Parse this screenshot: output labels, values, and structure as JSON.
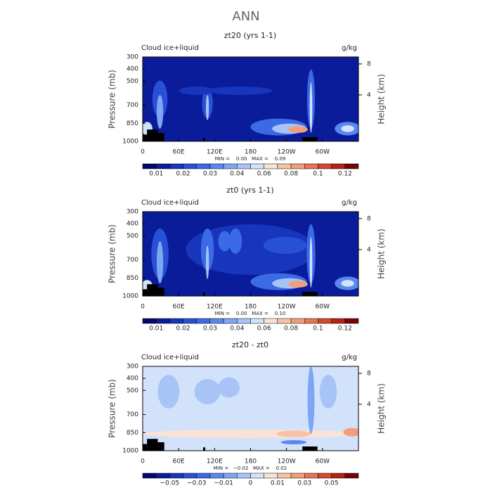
{
  "title": "ANN",
  "chart_data": [
    {
      "type": "contour",
      "title": "zt20 (yrs 1-1)",
      "subtitle": "Cloud ice+liquid",
      "units": "g/kg",
      "ylabel": "Pressure (mb)",
      "y2label": "Height (km)",
      "stats": "MIN =    0.00   MAX =    0.09",
      "xlim": [
        0,
        360
      ],
      "xticks": [
        0,
        {
          "value": 60,
          "label": "60E"
        },
        {
          "value": 120,
          "label": "120E"
        },
        180,
        {
          "value": 240,
          "label": "120W"
        },
        {
          "value": 300,
          "label": "60W"
        }
      ],
      "ylim": [
        1000,
        300
      ],
      "yticks": [
        300,
        400,
        500,
        700,
        850,
        1000
      ],
      "y2lim": [
        -2,
        8.9
      ],
      "y2ticks": [
        4,
        8
      ],
      "colorbar": {
        "levels": [
          0.01,
          null,
          0.02,
          null,
          0.03,
          null,
          0.04,
          null,
          0.06,
          null,
          0.08,
          null,
          0.1,
          null,
          0.12
        ],
        "colors": [
          "#06066e",
          "#0a1c9a",
          "#1736bd",
          "#2850d6",
          "#3b6ae6",
          "#5a88ef",
          "#7fa6f4",
          "#a8c4f7",
          "#d2e2fb",
          "#fbe2d6",
          "#f7c3a6",
          "#f19f7b",
          "#e67552",
          "#d4492b",
          "#b32214",
          "#780404"
        ]
      }
    },
    {
      "type": "contour",
      "title": "zt0 (yrs 1-1)",
      "subtitle": "Cloud ice+liquid",
      "units": "g/kg",
      "ylabel": "Pressure (mb)",
      "y2label": "Height (km)",
      "stats": "MIN =    0.00   MAX =    0.10",
      "xlim": [
        0,
        360
      ],
      "xticks": [
        0,
        {
          "value": 60,
          "label": "60E"
        },
        {
          "value": 120,
          "label": "120E"
        },
        180,
        {
          "value": 240,
          "label": "120W"
        },
        {
          "value": 300,
          "label": "60W"
        }
      ],
      "ylim": [
        1000,
        300
      ],
      "yticks": [
        300,
        400,
        500,
        700,
        850,
        1000
      ],
      "y2lim": [
        -2,
        8.9
      ],
      "y2ticks": [
        4,
        8
      ],
      "colorbar": {
        "levels": [
          0.01,
          null,
          0.02,
          null,
          0.03,
          null,
          0.04,
          null,
          0.06,
          null,
          0.08,
          null,
          0.1,
          null,
          0.12
        ],
        "colors": [
          "#06066e",
          "#0a1c9a",
          "#1736bd",
          "#2850d6",
          "#3b6ae6",
          "#5a88ef",
          "#7fa6f4",
          "#a8c4f7",
          "#d2e2fb",
          "#fbe2d6",
          "#f7c3a6",
          "#f19f7b",
          "#e67552",
          "#d4492b",
          "#b32214",
          "#780404"
        ]
      }
    },
    {
      "type": "contour",
      "title": "zt20 - zt0",
      "subtitle": "Cloud ice+liquid",
      "units": "g/kg",
      "ylabel": "Pressure (mb)",
      "y2label": "Height (km)",
      "stats": "MIN =   −0.02   MAX =    0.02",
      "xlim": [
        0,
        360
      ],
      "xticks": [
        0,
        {
          "value": 60,
          "label": "60E"
        },
        {
          "value": 120,
          "label": "120E"
        },
        180,
        {
          "value": 240,
          "label": "120W"
        },
        {
          "value": 300,
          "label": "60W"
        }
      ],
      "ylim": [
        1000,
        300
      ],
      "yticks": [
        300,
        400,
        500,
        700,
        850,
        1000
      ],
      "y2lim": [
        -2,
        8.9
      ],
      "y2ticks": [
        4,
        8
      ],
      "colorbar": {
        "levels": [
          null,
          {
            "value": -0.05,
            "label": "−0.05"
          },
          null,
          {
            "value": -0.03,
            "label": "−0.03"
          },
          null,
          {
            "value": -0.01,
            "label": "−0.01"
          },
          null,
          0,
          null,
          0.01,
          null,
          0.03,
          null,
          0.05,
          null
        ],
        "colors": [
          "#06066e",
          "#0a1c9a",
          "#1736bd",
          "#2850d6",
          "#3b6ae6",
          "#5a88ef",
          "#7fa6f4",
          "#a8c4f7",
          "#d2e2fb",
          "#fbe2d6",
          "#f7c3a6",
          "#f19f7b",
          "#e67552",
          "#d4492b",
          "#b32214",
          "#780404"
        ]
      }
    }
  ]
}
